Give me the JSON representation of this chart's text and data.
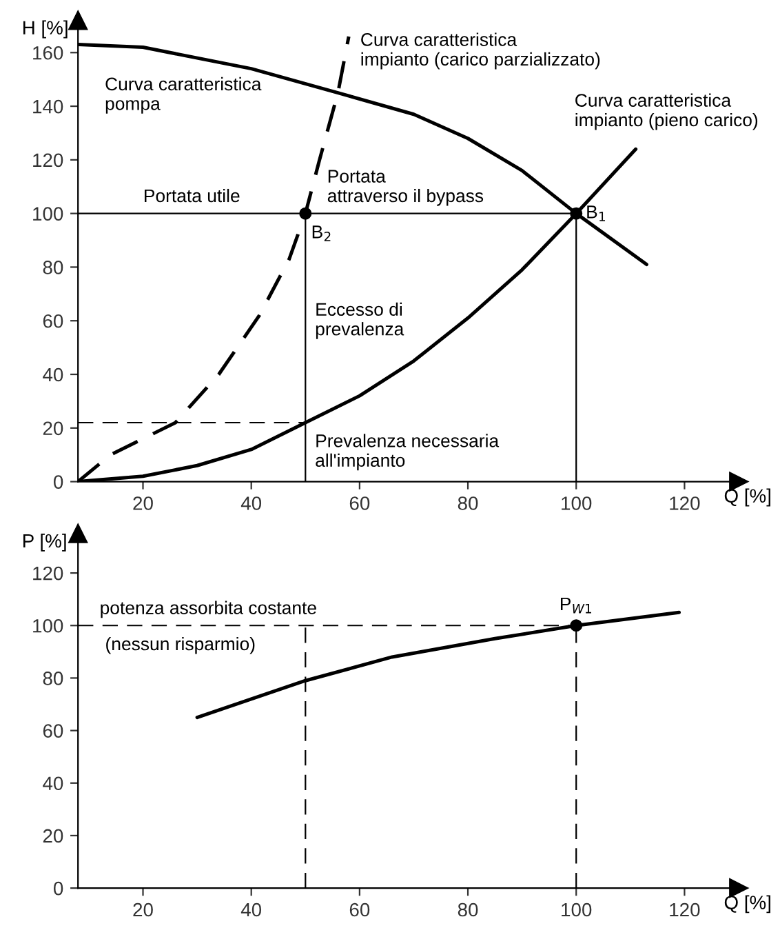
{
  "chart_data": [
    {
      "type": "line",
      "xlabel": "Q [%]",
      "ylabel": "H [%]",
      "xlim": [
        8,
        130
      ],
      "ylim": [
        0,
        172
      ],
      "xticks": [
        20,
        40,
        60,
        80,
        100,
        120
      ],
      "yticks": [
        0,
        20,
        40,
        60,
        80,
        100,
        120,
        140,
        160
      ],
      "grid": false,
      "legend": false,
      "series": [
        {
          "name": "Curva caratteristica\npompa",
          "color": "#000000",
          "line_style": "solid",
          "x": [
            8,
            20,
            40,
            56,
            70,
            80,
            90,
            100,
            113
          ],
          "values": [
            163,
            162,
            154,
            145,
            137,
            128,
            116,
            100,
            81
          ]
        },
        {
          "name": "Curva caratteristica\nimpianto (carico parzializzato)",
          "color": "#000000",
          "line_style": "dashed",
          "x": [
            8,
            14,
            26,
            34,
            41.5,
            47,
            50,
            52.6,
            56,
            58
          ],
          "values": [
            0,
            10,
            22,
            40,
            62,
            83,
            100,
            120,
            145,
            166
          ]
        },
        {
          "name": "Curva caratteristica\nimpianto (pieno carico)",
          "color": "#000000",
          "line_style": "solid",
          "x": [
            8,
            20,
            30,
            40,
            50,
            60,
            70,
            80,
            90,
            100,
            111
          ],
          "values": [
            0,
            2,
            6,
            12,
            22,
            32,
            45,
            61,
            79,
            100,
            124
          ]
        },
        {
          "color": "#000000",
          "line_style": "dashed",
          "x": [
            8,
            50
          ],
          "values": [
            22,
            22
          ]
        },
        {
          "color": "#000000",
          "line_style": "solid",
          "x": [
            8,
            100
          ],
          "values": [
            100,
            100
          ]
        },
        {
          "color": "#000000",
          "line_style": "solid",
          "x": [
            50,
            50
          ],
          "values": [
            0,
            100
          ]
        },
        {
          "color": "#000000",
          "line_style": "solid",
          "x": [
            100,
            100
          ],
          "values": [
            0,
            100
          ]
        },
        {
          "type": "scatter",
          "color": "#000000",
          "marker": "circle",
          "x": [
            50,
            100
          ],
          "values": [
            100,
            100
          ]
        }
      ],
      "annotations": [
        {
          "text": "Portata utile",
          "x": 29,
          "y": 100
        },
        {
          "text": "Portata\nattraverso il bypass",
          "x": 54,
          "y": 100
        },
        {
          "text": "B$_{2}$",
          "x": 50,
          "y": 100
        },
        {
          "text": "B$_{1}$",
          "x": 100,
          "y": 100
        },
        {
          "text": "Eccesso di\nprevalenza",
          "x": 50,
          "y": 60
        },
        {
          "text": "Prevalenza necessaria\nall'impianto",
          "x": 50,
          "y": 11
        }
      ]
    },
    {
      "type": "line",
      "xlabel": "Q [%]",
      "ylabel": "P [%]",
      "xlim": [
        8,
        130
      ],
      "ylim": [
        0,
        135
      ],
      "xticks": [
        20,
        40,
        60,
        80,
        100,
        120
      ],
      "yticks": [
        0,
        20,
        40,
        60,
        80,
        100,
        120
      ],
      "grid": false,
      "legend": false,
      "series": [
        {
          "color": "#000000",
          "line_style": "solid",
          "x": [
            30,
            40,
            50,
            66,
            85,
            100,
            119
          ],
          "values": [
            65,
            72,
            79,
            88,
            95,
            100,
            105
          ]
        },
        {
          "color": "#000000",
          "line_style": "dashed",
          "x": [
            8,
            100
          ],
          "values": [
            100,
            100
          ]
        },
        {
          "color": "#000000",
          "line_style": "dashed",
          "x": [
            50,
            50
          ],
          "values": [
            0,
            100
          ]
        },
        {
          "color": "#000000",
          "line_style": "dashed",
          "x": [
            100,
            100
          ],
          "values": [
            0,
            100
          ]
        },
        {
          "type": "scatter",
          "color": "#000000",
          "marker": "circle",
          "x": [
            100
          ],
          "values": [
            100
          ]
        }
      ],
      "annotations": [
        {
          "text": "potenza assorbita costante",
          "x": 12,
          "y": 100
        },
        {
          "text": "(nessun risparmio)",
          "x": 13,
          "y": 100
        },
        {
          "text": "P$_{W1}$",
          "x": 100,
          "y": 100
        }
      ]
    }
  ]
}
